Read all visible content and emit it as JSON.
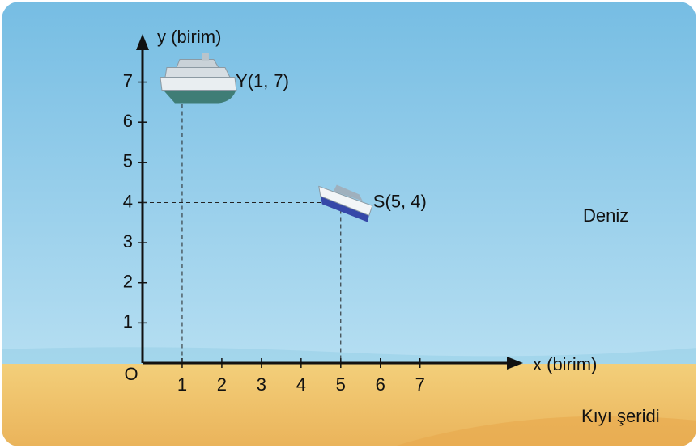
{
  "chart_data": {
    "type": "scatter",
    "x_label": "x (birim)",
    "y_label": "y (birim)",
    "origin_label": "O",
    "x": [
      1,
      5
    ],
    "y": [
      7,
      4
    ],
    "labels": [
      "Y(1, 7)",
      "S(5, 4)"
    ],
    "xlim": [
      0,
      9.6
    ],
    "ylim": [
      0,
      8.2
    ],
    "xticks": [
      1,
      2,
      3,
      4,
      5,
      6,
      7
    ],
    "yticks": [
      1,
      2,
      3,
      4,
      5,
      6,
      7
    ]
  },
  "annotations": [
    "Deniz",
    "Kıyı şeridi"
  ]
}
